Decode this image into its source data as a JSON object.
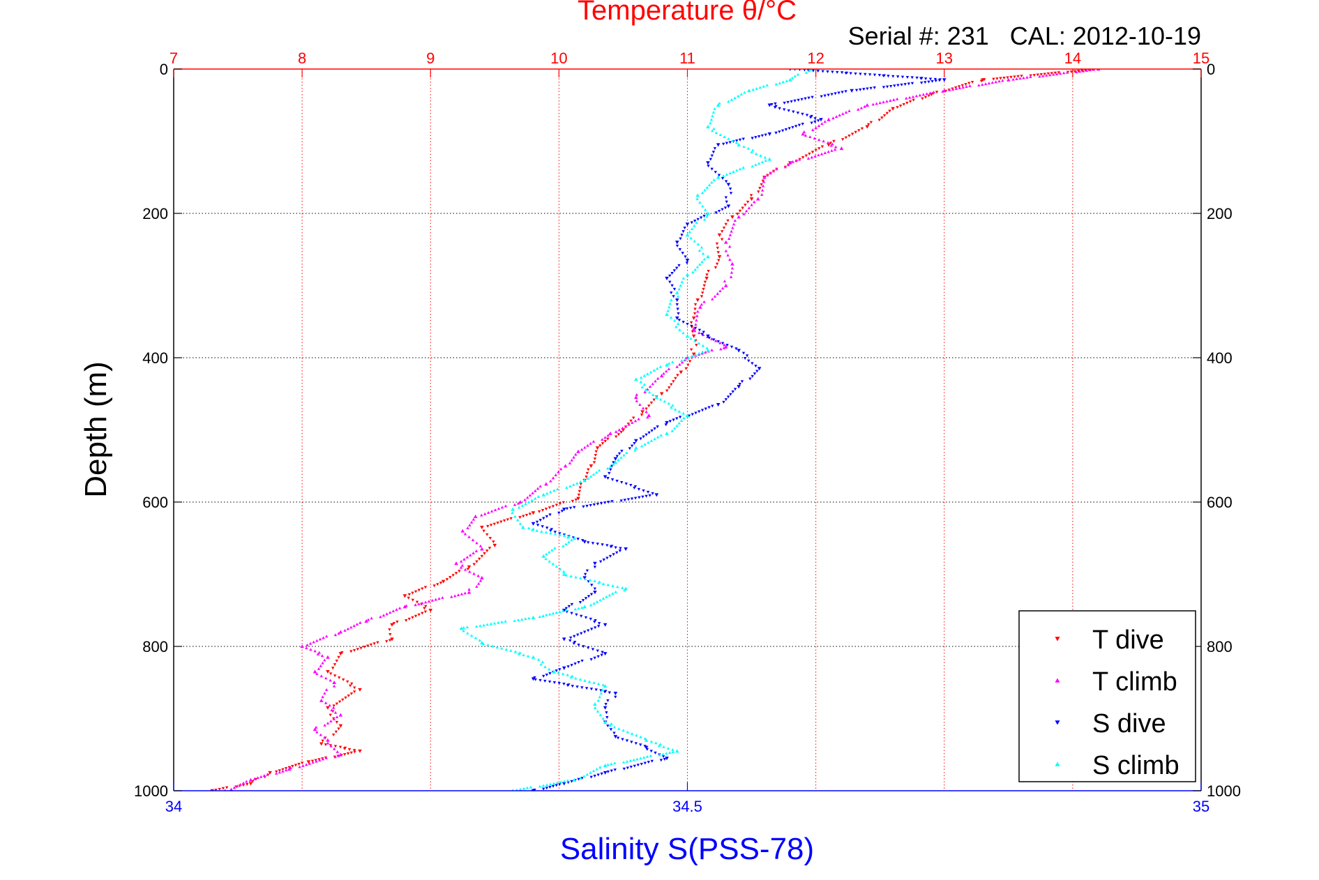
{
  "chart_data": {
    "type": "scatter",
    "title": "Temperature θ/°C",
    "subtitle": "Serial #: 231   CAL: 2012-10-19",
    "xlabel_bottom": "Salinity S(PSS-78)",
    "xlabel_top": "",
    "ylabel": "Depth (m)",
    "axes": {
      "depth_range": [
        0,
        1000
      ],
      "depth_reversed": true,
      "temperature_range": [
        7,
        15
      ],
      "salinity_range": [
        34,
        35
      ],
      "grid": "dotted"
    },
    "ticks": {
      "depth": [
        "0",
        "200",
        "400",
        "600",
        "800",
        "1000"
      ],
      "temperature": [
        "7",
        "8",
        "9",
        "10",
        "11",
        "12",
        "13",
        "14",
        "15"
      ],
      "salinity": [
        "34",
        "34.5",
        "35"
      ]
    },
    "colors": {
      "temperature_axis": "#ff0000",
      "salinity_axis": "#0000ff",
      "t_dive": "#ff0000",
      "t_climb": "#ff00ff",
      "s_dive": "#0000ff",
      "s_climb": "#00ffff"
    },
    "legend": {
      "position": "bottom-right",
      "entries": [
        "T dive",
        "T climb",
        "S dive",
        "S climb"
      ]
    },
    "series": [
      {
        "name": "T dive",
        "axis": "temperature",
        "marker": "triangle-down",
        "color": "#ff0000",
        "points": [
          [
            14.2,
            0
          ],
          [
            13.3,
            15
          ],
          [
            12.9,
            35
          ],
          [
            12.6,
            55
          ],
          [
            12.4,
            80
          ],
          [
            12.1,
            105
          ],
          [
            11.8,
            130
          ],
          [
            11.6,
            150
          ],
          [
            11.5,
            180
          ],
          [
            11.35,
            205
          ],
          [
            11.25,
            230
          ],
          [
            11.25,
            260
          ],
          [
            11.15,
            290
          ],
          [
            11.08,
            320
          ],
          [
            11.05,
            345
          ],
          [
            11.05,
            370
          ],
          [
            11.05,
            395
          ],
          [
            10.95,
            420
          ],
          [
            10.8,
            450
          ],
          [
            10.65,
            475
          ],
          [
            10.5,
            500
          ],
          [
            10.3,
            525
          ],
          [
            10.25,
            550
          ],
          [
            10.2,
            570
          ],
          [
            10.15,
            595
          ],
          [
            9.8,
            615
          ],
          [
            9.4,
            635
          ],
          [
            9.5,
            660
          ],
          [
            9.3,
            690
          ],
          [
            9.1,
            710
          ],
          [
            8.8,
            730
          ],
          [
            9.0,
            750
          ],
          [
            8.7,
            770
          ],
          [
            8.7,
            790
          ],
          [
            8.3,
            810
          ],
          [
            8.2,
            835
          ],
          [
            8.45,
            860
          ],
          [
            8.2,
            885
          ],
          [
            8.3,
            910
          ],
          [
            8.15,
            935
          ],
          [
            8.45,
            945
          ],
          [
            8.05,
            960
          ],
          [
            7.75,
            975
          ],
          [
            7.6,
            990
          ],
          [
            7.3,
            1000
          ]
        ]
      },
      {
        "name": "T climb",
        "axis": "temperature",
        "marker": "triangle-up",
        "color": "#ff00ff",
        "points": [
          [
            14.2,
            0
          ],
          [
            13.5,
            15
          ],
          [
            13.0,
            30
          ],
          [
            12.4,
            50
          ],
          [
            12.1,
            70
          ],
          [
            11.9,
            90
          ],
          [
            12.2,
            110
          ],
          [
            11.8,
            130
          ],
          [
            11.6,
            150
          ],
          [
            11.55,
            180
          ],
          [
            11.4,
            205
          ],
          [
            11.3,
            240
          ],
          [
            11.35,
            270
          ],
          [
            11.3,
            300
          ],
          [
            11.1,
            330
          ],
          [
            11.05,
            360
          ],
          [
            11.3,
            385
          ],
          [
            11.0,
            400
          ],
          [
            10.8,
            425
          ],
          [
            10.6,
            455
          ],
          [
            10.7,
            480
          ],
          [
            10.4,
            505
          ],
          [
            10.15,
            530
          ],
          [
            10.05,
            550
          ],
          [
            9.9,
            575
          ],
          [
            9.7,
            600
          ],
          [
            9.35,
            620
          ],
          [
            9.25,
            640
          ],
          [
            9.4,
            665
          ],
          [
            9.2,
            685
          ],
          [
            9.4,
            705
          ],
          [
            9.3,
            725
          ],
          [
            8.8,
            745
          ],
          [
            8.5,
            765
          ],
          [
            8.3,
            780
          ],
          [
            8.0,
            800
          ],
          [
            8.2,
            815
          ],
          [
            8.1,
            835
          ],
          [
            8.25,
            850
          ],
          [
            8.15,
            875
          ],
          [
            8.3,
            895
          ],
          [
            8.1,
            915
          ],
          [
            8.2,
            930
          ],
          [
            8.3,
            950
          ],
          [
            7.9,
            970
          ],
          [
            7.6,
            985
          ],
          [
            7.4,
            1000
          ]
        ]
      },
      {
        "name": "S dive",
        "axis": "salinity",
        "marker": "triangle-down",
        "color": "#0000ff",
        "points": [
          [
            34.6,
            0
          ],
          [
            34.75,
            15
          ],
          [
            34.66,
            30
          ],
          [
            34.58,
            50
          ],
          [
            34.63,
            70
          ],
          [
            34.58,
            90
          ],
          [
            34.53,
            105
          ],
          [
            34.52,
            130
          ],
          [
            34.54,
            160
          ],
          [
            34.54,
            190
          ],
          [
            34.5,
            215
          ],
          [
            34.49,
            240
          ],
          [
            34.5,
            265
          ],
          [
            34.48,
            290
          ],
          [
            34.49,
            320
          ],
          [
            34.49,
            345
          ],
          [
            34.52,
            370
          ],
          [
            34.55,
            390
          ],
          [
            34.57,
            415
          ],
          [
            34.55,
            440
          ],
          [
            34.53,
            465
          ],
          [
            34.48,
            490
          ],
          [
            34.45,
            515
          ],
          [
            34.43,
            540
          ],
          [
            34.42,
            565
          ],
          [
            34.47,
            590
          ],
          [
            34.38,
            610
          ],
          [
            34.35,
            630
          ],
          [
            34.4,
            655
          ],
          [
            34.44,
            665
          ],
          [
            34.41,
            685
          ],
          [
            34.4,
            705
          ],
          [
            34.41,
            725
          ],
          [
            34.38,
            750
          ],
          [
            34.42,
            770
          ],
          [
            34.38,
            790
          ],
          [
            34.42,
            810
          ],
          [
            34.38,
            830
          ],
          [
            34.35,
            845
          ],
          [
            34.43,
            865
          ],
          [
            34.42,
            885
          ],
          [
            34.42,
            905
          ],
          [
            34.43,
            925
          ],
          [
            34.46,
            940
          ],
          [
            34.48,
            955
          ],
          [
            34.42,
            975
          ],
          [
            34.38,
            990
          ],
          [
            34.35,
            1000
          ]
        ]
      },
      {
        "name": "S climb",
        "axis": "salinity",
        "marker": "triangle-up",
        "color": "#00ffff",
        "points": [
          [
            34.62,
            0
          ],
          [
            34.6,
            15
          ],
          [
            34.56,
            30
          ],
          [
            34.53,
            50
          ],
          [
            34.52,
            80
          ],
          [
            34.55,
            105
          ],
          [
            34.58,
            125
          ],
          [
            34.53,
            150
          ],
          [
            34.51,
            175
          ],
          [
            34.52,
            200
          ],
          [
            34.5,
            230
          ],
          [
            34.52,
            260
          ],
          [
            34.5,
            285
          ],
          [
            34.49,
            310
          ],
          [
            34.48,
            340
          ],
          [
            34.5,
            370
          ],
          [
            34.52,
            390
          ],
          [
            34.48,
            410
          ],
          [
            34.45,
            430
          ],
          [
            34.47,
            455
          ],
          [
            34.5,
            480
          ],
          [
            34.48,
            505
          ],
          [
            34.45,
            525
          ],
          [
            34.43,
            545
          ],
          [
            34.4,
            570
          ],
          [
            34.36,
            590
          ],
          [
            34.33,
            610
          ],
          [
            34.34,
            635
          ],
          [
            34.39,
            650
          ],
          [
            34.36,
            675
          ],
          [
            34.38,
            700
          ],
          [
            34.44,
            720
          ],
          [
            34.4,
            745
          ],
          [
            34.35,
            760
          ],
          [
            34.28,
            775
          ],
          [
            34.3,
            795
          ],
          [
            34.35,
            815
          ],
          [
            34.37,
            835
          ],
          [
            34.42,
            855
          ],
          [
            34.41,
            880
          ],
          [
            34.42,
            905
          ],
          [
            34.46,
            930
          ],
          [
            34.49,
            945
          ],
          [
            34.42,
            965
          ],
          [
            34.39,
            985
          ],
          [
            34.33,
            1000
          ]
        ]
      }
    ]
  }
}
